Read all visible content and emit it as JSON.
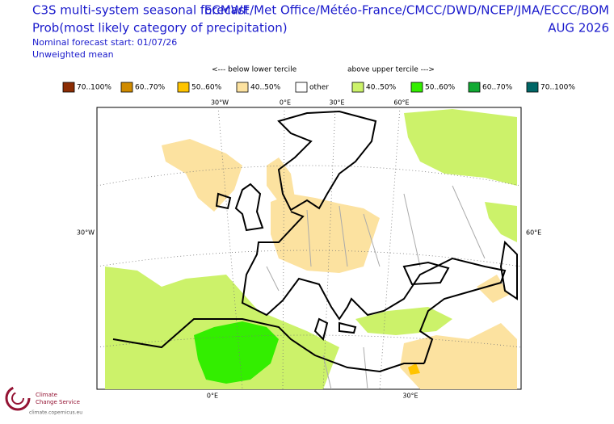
{
  "header": {
    "title": "C3S multi-system seasonal forecast",
    "subtitle": "Prob(most likely category of precipitation)",
    "sources": "ECMWF/Met Office/Météo-France/CMCC/DWD/NCEP/JMA/ECCC/BOM",
    "period": "AUG 2026",
    "notes": [
      "Nominal forecast start: 01/07/26",
      "Unweighted mean"
    ]
  },
  "legend": {
    "below_label": "<--- below lower tercile",
    "above_label": "above upper tercile --->",
    "items": [
      {
        "label": "70..100%",
        "color": "#8c2d04"
      },
      {
        "label": "60..70%",
        "color": "#d08b00"
      },
      {
        "label": "50..60%",
        "color": "#ffc400"
      },
      {
        "label": "40..50%",
        "color": "#fce2a0"
      },
      {
        "label": "other",
        "color": "#ffffff"
      },
      {
        "label": "40..50%",
        "color": "#ccf26a"
      },
      {
        "label": "50..60%",
        "color": "#33ee00"
      },
      {
        "label": "60..70%",
        "color": "#11aa33"
      },
      {
        "label": "70..100%",
        "color": "#006666"
      }
    ]
  },
  "map": {
    "graticule_labels": {
      "top": [
        "30°W",
        "0°E",
        "30°E",
        "60°E"
      ],
      "left": "30°W",
      "right": "60°E",
      "bottom": [
        "0°E",
        "30°E"
      ]
    }
  },
  "footer": {
    "logo_lines": [
      "Climate",
      "Change Service"
    ],
    "url": "climate.copernicus.eu"
  }
}
